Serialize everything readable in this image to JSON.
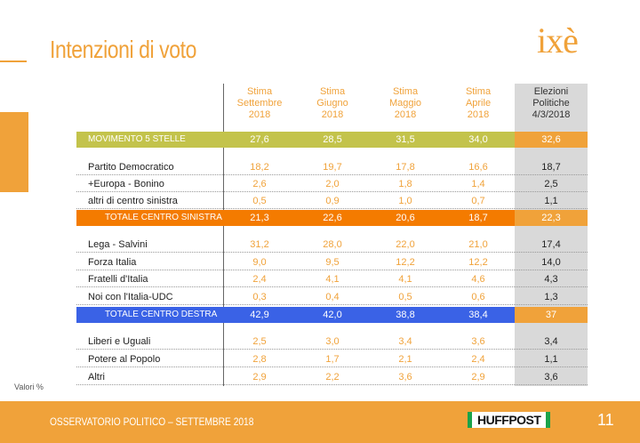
{
  "slide": {
    "title": "Intenzioni di voto",
    "logo": "ixè",
    "note": "Valori %",
    "footer": "OSSERVATORIO POLITICO – SETTEMBRE 2018",
    "publisher_logo": "HUFFPOST",
    "page_number": "11"
  },
  "table": {
    "headers": [
      {
        "l1": "Stima",
        "l2": "Settembre",
        "l3": "2018"
      },
      {
        "l1": "Stima",
        "l2": "Giugno",
        "l3": "2018"
      },
      {
        "l1": "Stima",
        "l2": "Maggio",
        "l3": "2018"
      },
      {
        "l1": "Stima",
        "l2": "Aprile",
        "l3": "2018"
      },
      {
        "l1": "Elezioni",
        "l2": "Politiche",
        "l3": "4/3/2018"
      }
    ],
    "rows": {
      "m5s": {
        "label": "MOVIMENTO 5 STELLE",
        "values": [
          "27,6",
          "28,5",
          "31,5",
          "34,0",
          "32,6"
        ]
      },
      "pd": {
        "label": "Partito Democratico",
        "values": [
          "18,2",
          "19,7",
          "17,8",
          "16,6",
          "18,7"
        ]
      },
      "eb": {
        "label": "+Europa - Bonino",
        "values": [
          "2,6",
          "2,0",
          "1,8",
          "1,4",
          "2,5"
        ]
      },
      "acs": {
        "label": "altri di centro sinistra",
        "values": [
          "0,5",
          "0,9",
          "1,0",
          "0,7",
          "1,1"
        ]
      },
      "tcs": {
        "label": "TOTALE CENTRO SINISTRA",
        "values": [
          "21,3",
          "22,6",
          "20,6",
          "18,7",
          "22,3"
        ]
      },
      "lega": {
        "label": "Lega - Salvini",
        "values": [
          "31,2",
          "28,0",
          "22,0",
          "21,0",
          "17,4"
        ]
      },
      "fi": {
        "label": "Forza Italia",
        "values": [
          "9,0",
          "9,5",
          "12,2",
          "12,2",
          "14,0"
        ]
      },
      "fdi": {
        "label": "Fratelli d'Italia",
        "values": [
          "2,4",
          "4,1",
          "4,1",
          "4,6",
          "4,3"
        ]
      },
      "nci": {
        "label": "Noi con l'Italia-UDC",
        "values": [
          "0,3",
          "0,4",
          "0,5",
          "0,6",
          "1,3"
        ]
      },
      "tcd": {
        "label": "TOTALE CENTRO DESTRA",
        "values": [
          "42,9",
          "42,0",
          "38,8",
          "38,4",
          "37"
        ]
      },
      "leu": {
        "label": "Liberi e Uguali",
        "values": [
          "2,5",
          "3,0",
          "3,4",
          "3,6",
          "3,4"
        ]
      },
      "pap": {
        "label": "Potere al Popolo",
        "values": [
          "2,8",
          "1,7",
          "2,1",
          "2,4",
          "1,1"
        ]
      },
      "altri": {
        "label": "Altri",
        "values": [
          "2,9",
          "2,2",
          "3,6",
          "2,9",
          "3,6"
        ]
      }
    }
  },
  "colors": {
    "accent_orange": "#f0a23a",
    "m5s_band": "#c3c34b",
    "centro_sinistra_band": "#f47b00",
    "centro_destra_band": "#3a62e6",
    "elections_column": "#d9d9d9"
  }
}
